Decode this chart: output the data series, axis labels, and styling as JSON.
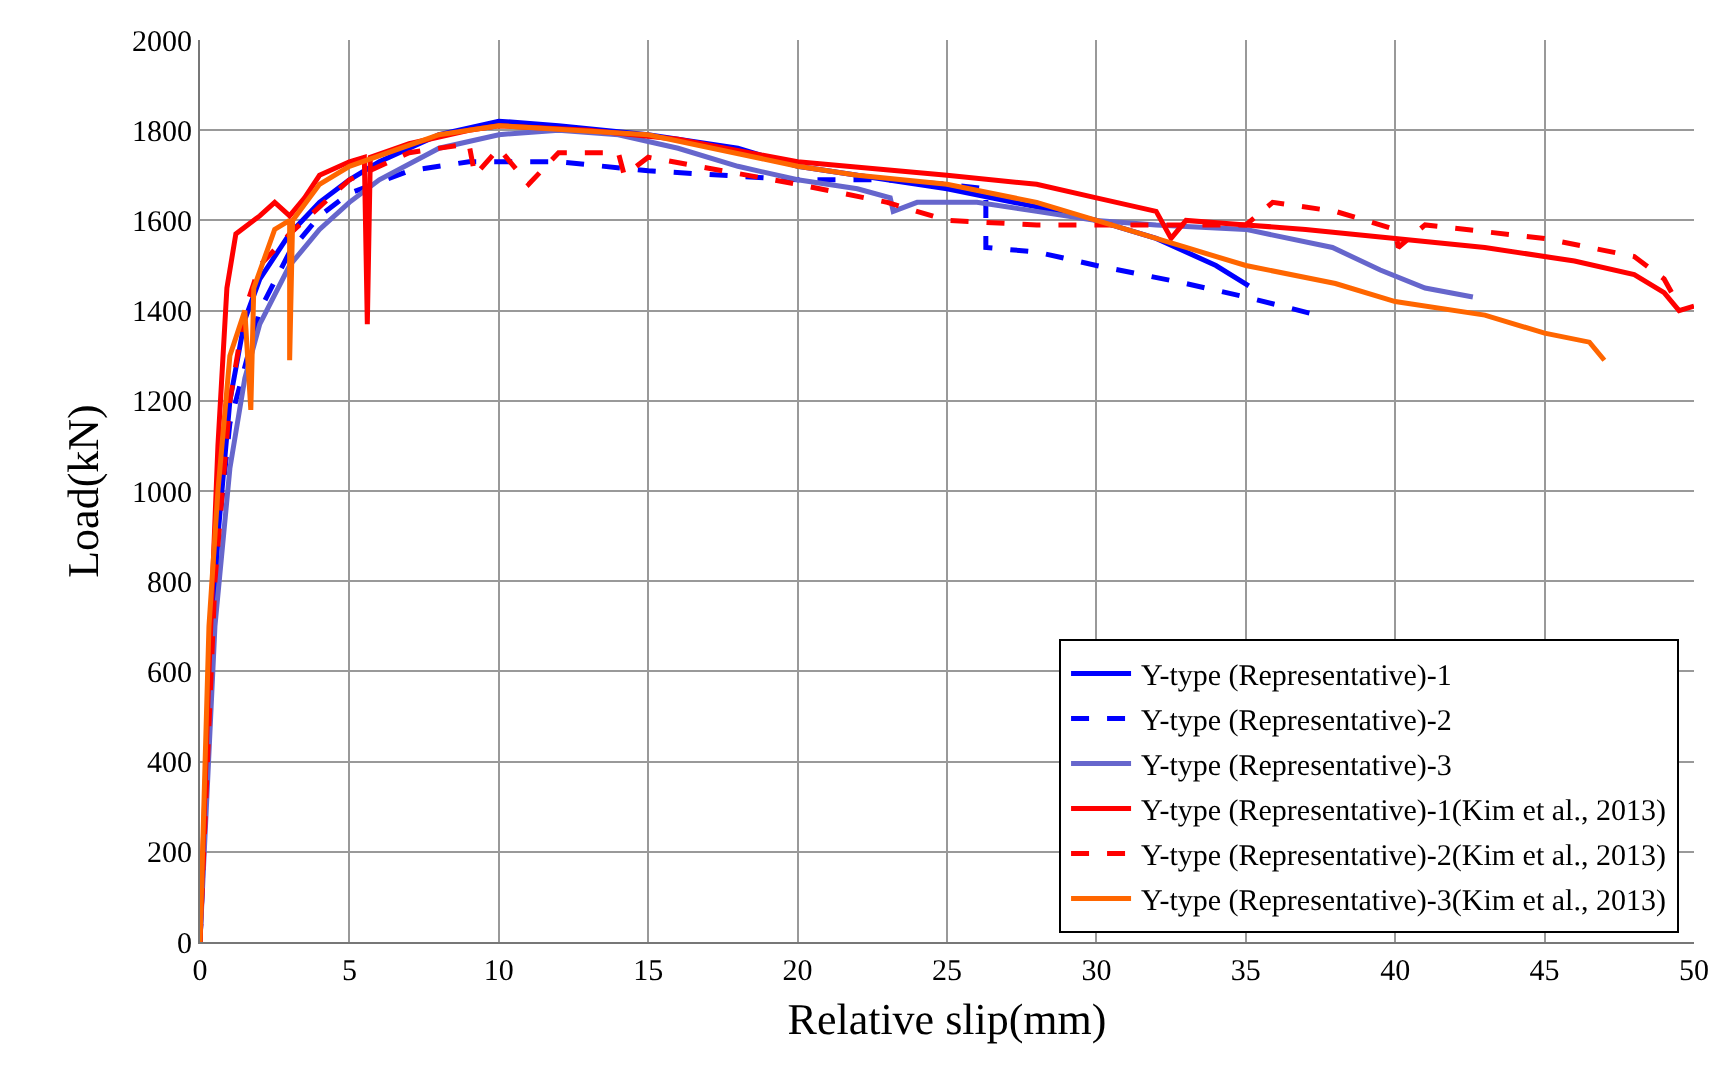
{
  "chart_data": {
    "type": "line",
    "xlabel": "Relative slip(mm)",
    "ylabel": "Load(kN)",
    "xlim": [
      0,
      50
    ],
    "ylim": [
      0,
      2000
    ],
    "xticks": [
      0,
      5,
      10,
      15,
      20,
      25,
      30,
      35,
      40,
      45,
      50
    ],
    "yticks": [
      0,
      200,
      400,
      600,
      800,
      1000,
      1200,
      1400,
      1600,
      1800,
      2000
    ],
    "grid": true,
    "legend": "bottom right",
    "marker": "none",
    "series": [
      {
        "name": "Y-type (Representative)-1",
        "color": "#0000ff",
        "line_style": "solid",
        "x": [
          0,
          0.3,
          0.6,
          1,
          1.5,
          2,
          3,
          4,
          5,
          6,
          8,
          10,
          12,
          15,
          18,
          20,
          23,
          25,
          28,
          30,
          32,
          34,
          35.1
        ],
        "values": [
          0,
          500,
          900,
          1200,
          1380,
          1470,
          1570,
          1640,
          1690,
          1730,
          1790,
          1820,
          1810,
          1790,
          1760,
          1720,
          1690,
          1670,
          1630,
          1600,
          1560,
          1500,
          1455
        ]
      },
      {
        "name": "Y-type (Representative)-2",
        "color": "#0000ff",
        "line_style": "dashed",
        "x": [
          0,
          0.3,
          0.6,
          1,
          2,
          3,
          4,
          5,
          7,
          9,
          12,
          15,
          20,
          23,
          25,
          26.3,
          26.3,
          28,
          30,
          33,
          35,
          37.4
        ],
        "values": [
          0,
          500,
          900,
          1150,
          1400,
          1530,
          1610,
          1660,
          1710,
          1730,
          1730,
          1710,
          1690,
          1690,
          1680,
          1670,
          1540,
          1530,
          1500,
          1460,
          1430,
          1390
        ]
      },
      {
        "name": "Y-type (Representative)-3",
        "color": "#6666cc",
        "line_style": "solid",
        "x": [
          0,
          0.5,
          1,
          1.5,
          2,
          3,
          4,
          5,
          6,
          8,
          10,
          12,
          14,
          16,
          18,
          20,
          22,
          23.1,
          23.2,
          24,
          26,
          28,
          30,
          32,
          35,
          37.9,
          39.5,
          41,
          42.6
        ],
        "values": [
          0,
          700,
          1050,
          1250,
          1370,
          1500,
          1580,
          1640,
          1690,
          1760,
          1790,
          1800,
          1790,
          1760,
          1720,
          1690,
          1670,
          1650,
          1620,
          1640,
          1640,
          1620,
          1600,
          1590,
          1580,
          1540,
          1490,
          1450,
          1430
        ]
      },
      {
        "name": "Y-type (Representative)-1(Kim et al., 2013)",
        "color": "#ff0000",
        "line_style": "solid",
        "x": [
          0,
          0.3,
          0.6,
          0.9,
          1.2,
          2,
          2.5,
          3,
          3.5,
          4,
          5,
          5.5,
          5.6,
          5.7,
          7,
          9,
          10,
          13,
          16,
          20,
          25,
          28,
          30,
          32,
          32.5,
          33,
          35,
          37,
          40,
          43,
          46,
          48,
          49,
          49.5,
          50
        ],
        "values": [
          0,
          600,
          1100,
          1450,
          1570,
          1610,
          1640,
          1610,
          1650,
          1700,
          1730,
          1740,
          1370,
          1740,
          1770,
          1800,
          1810,
          1800,
          1780,
          1730,
          1700,
          1680,
          1650,
          1620,
          1560,
          1600,
          1590,
          1580,
          1560,
          1540,
          1510,
          1480,
          1440,
          1400,
          1410
        ]
      },
      {
        "name": "Y-type (Representative)-2(Kim et al., 2013)",
        "color": "#ff0000",
        "line_style": "dashed",
        "x": [
          0,
          0.5,
          1,
          1.5,
          2,
          3,
          4,
          5,
          7,
          9,
          9.2,
          10,
          11,
          12,
          14,
          14.2,
          15,
          20,
          23,
          25,
          28,
          30,
          32,
          35,
          35.9,
          38,
          40,
          40.1,
          41,
          45,
          48,
          49,
          49.5
        ],
        "values": [
          0,
          800,
          1200,
          1400,
          1500,
          1570,
          1630,
          1690,
          1750,
          1770,
          1700,
          1760,
          1680,
          1750,
          1750,
          1700,
          1740,
          1680,
          1640,
          1600,
          1590,
          1590,
          1590,
          1590,
          1640,
          1620,
          1580,
          1540,
          1590,
          1560,
          1520,
          1470,
          1410
        ]
      },
      {
        "name": "Y-type (Representative)-3(Kim et al., 2013)",
        "color": "#ff6600",
        "line_style": "solid",
        "x": [
          0,
          0.3,
          0.6,
          1,
          1.5,
          1.7,
          1.8,
          2.5,
          3,
          3,
          3.1,
          4,
          5,
          8,
          10,
          15,
          20,
          22,
          25,
          28,
          30,
          33,
          35,
          38,
          40,
          43,
          45,
          46.5,
          47
        ],
        "values": [
          0,
          700,
          1000,
          1300,
          1400,
          1180,
          1450,
          1580,
          1600,
          1290,
          1600,
          1680,
          1720,
          1790,
          1810,
          1790,
          1720,
          1700,
          1680,
          1640,
          1600,
          1540,
          1500,
          1460,
          1420,
          1390,
          1350,
          1330,
          1290
        ]
      }
    ]
  }
}
